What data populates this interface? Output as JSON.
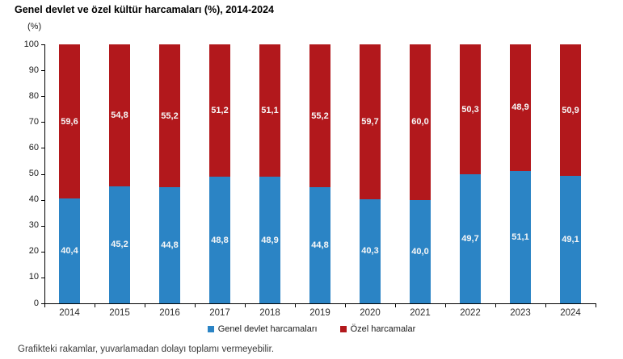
{
  "title": "Genel devlet ve özel kültür harcamaları (%), 2014-2024",
  "unit_label": "(%)",
  "footnote": "Grafikteki rakamlar, yuvarlamadan dolayı toplamı vermeyebilir.",
  "colors": {
    "government_blue": "#2B84C5",
    "private_red": "#B2181C",
    "bar_label_text": "#F7F7F7",
    "axis_line": "#000000"
  },
  "chart_data": {
    "type": "bar",
    "stacked": true,
    "title": "Genel devlet ve özel kültür harcamaları (%), 2014-2024",
    "xlabel": "",
    "ylabel": "(%)",
    "ylim": [
      0,
      100
    ],
    "yticks": [
      0,
      10,
      20,
      30,
      40,
      50,
      60,
      70,
      80,
      90,
      100
    ],
    "grid": false,
    "legend_position": "bottom",
    "categories": [
      "2014",
      "2015",
      "2016",
      "2017",
      "2018",
      "2019",
      "2020",
      "2021",
      "2022",
      "2023",
      "2024"
    ],
    "series": [
      {
        "name": "Genel devlet harcamaları",
        "color": "#2B84C5",
        "values": [
          40.4,
          45.2,
          44.8,
          48.8,
          48.9,
          44.8,
          40.3,
          40.0,
          49.7,
          51.1,
          49.1
        ],
        "labels": [
          "40,4",
          "45,2",
          "44,8",
          "48,8",
          "48,9",
          "44,8",
          "40,3",
          "40,0",
          "49,7",
          "51,1",
          "49,1"
        ]
      },
      {
        "name": "Özel harcamalar",
        "color": "#B2181C",
        "values": [
          59.6,
          54.8,
          55.2,
          51.2,
          51.1,
          55.2,
          59.7,
          60.0,
          50.3,
          48.9,
          50.9
        ],
        "labels": [
          "59,6",
          "54,8",
          "55,2",
          "51,2",
          "51,1",
          "55,2",
          "59,7",
          "60,0",
          "50,3",
          "48,9",
          "50,9"
        ]
      }
    ]
  },
  "legend": {
    "items": [
      {
        "label": "Genel devlet harcamaları",
        "color": "#2B84C5"
      },
      {
        "label": "Özel harcamalar",
        "color": "#B2181C"
      }
    ]
  }
}
